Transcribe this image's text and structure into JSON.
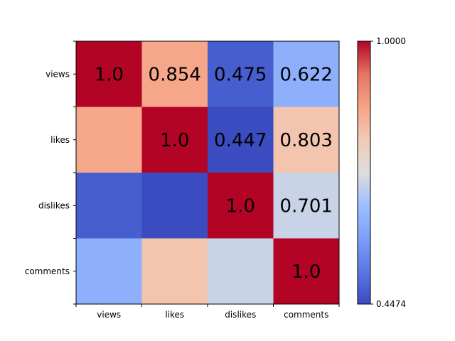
{
  "chart_data": {
    "type": "heatmap",
    "title": "",
    "xlabel": "",
    "ylabel": "",
    "x_categories": [
      "views",
      "likes",
      "dislikes",
      "comments"
    ],
    "y_categories": [
      "views",
      "likes",
      "dislikes",
      "comments"
    ],
    "matrix": [
      [
        1.0,
        0.854,
        0.475,
        0.622
      ],
      [
        0.854,
        1.0,
        0.447,
        0.803
      ],
      [
        0.475,
        0.447,
        1.0,
        0.701
      ],
      [
        0.622,
        0.803,
        0.701,
        1.0
      ]
    ],
    "cell_labels": [
      [
        "1.0",
        "0.854",
        "0.475",
        "0.622"
      ],
      [
        "",
        "1.0",
        "0.447",
        "0.803"
      ],
      [
        "",
        "",
        "1.0",
        "0.701"
      ],
      [
        "",
        "",
        "",
        "1.0"
      ]
    ],
    "colormap": "coolwarm",
    "colorbar": {
      "min": 0.4474,
      "max": 1.0,
      "min_label": "0.4474",
      "max_label": "1.0000"
    }
  }
}
